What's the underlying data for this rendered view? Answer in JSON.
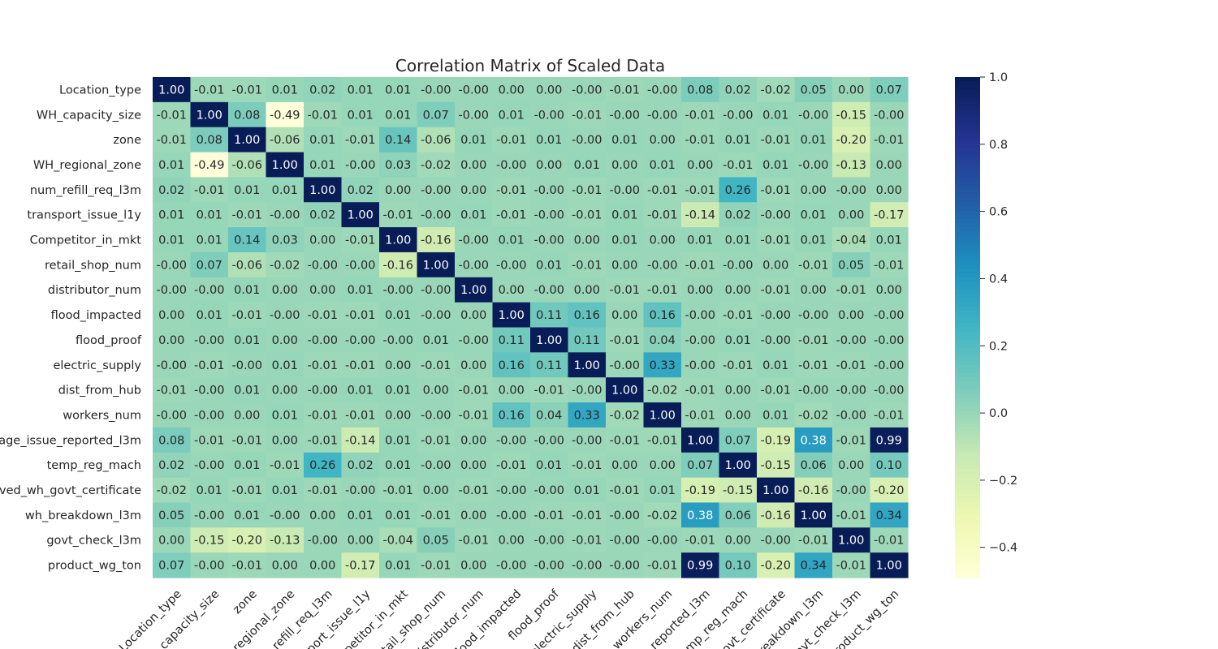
{
  "chart_data": {
    "type": "heatmap",
    "title": "Correlation Matrix of Scaled Data",
    "xlabel": "",
    "ylabel": "",
    "row_labels": [
      "Location_type",
      "WH_capacity_size",
      "zone",
      "WH_regional_zone",
      "num_refill_req_l3m",
      "transport_issue_l1y",
      "Competitor_in_mkt",
      "retail_shop_num",
      "distributor_num",
      "flood_impacted",
      "flood_proof",
      "electric_supply",
      "dist_from_hub",
      "workers_num",
      "rage_issue_reported_l3m",
      "temp_reg_mach",
      "roved_wh_govt_certificate",
      "wh_breakdown_l3m",
      "govt_check_l3m",
      "product_wg_ton"
    ],
    "col_labels": [
      "Location_type",
      "_capacity_size",
      "zone",
      "_regional_zone",
      "refill_req_l3m",
      "port_issue_l1y",
      "petitor_in_mkt",
      "tail_shop_num",
      "distributor_num",
      "flood_impacted",
      "flood_proof",
      "electric_supply",
      "dist_from_hub",
      "workers_num",
      "_reported_l3m",
      "temp_reg_mach",
      "govt_certificate",
      "breakdown_l3m",
      "ovt_check_l3m",
      "roduct_wg_ton"
    ],
    "values": [
      [
        1.0,
        -0.01,
        -0.01,
        0.01,
        0.02,
        0.01,
        0.01,
        -0.0,
        -0.0,
        0.0,
        0.0,
        -0.0,
        -0.01,
        -0.0,
        0.08,
        0.02,
        -0.02,
        0.05,
        0.0,
        0.07
      ],
      [
        -0.01,
        1.0,
        0.08,
        -0.49,
        -0.01,
        0.01,
        0.01,
        0.07,
        -0.0,
        0.01,
        -0.0,
        -0.01,
        -0.0,
        -0.0,
        -0.01,
        -0.0,
        0.01,
        -0.0,
        -0.15,
        -0.0
      ],
      [
        -0.01,
        0.08,
        1.0,
        -0.06,
        0.01,
        -0.01,
        0.14,
        -0.06,
        0.01,
        -0.01,
        0.01,
        -0.0,
        0.01,
        0.0,
        -0.01,
        0.01,
        -0.01,
        0.01,
        -0.2,
        -0.01
      ],
      [
        0.01,
        -0.49,
        -0.06,
        1.0,
        0.01,
        -0.0,
        0.03,
        -0.02,
        0.0,
        -0.0,
        0.0,
        0.01,
        0.0,
        0.01,
        0.0,
        -0.01,
        0.01,
        -0.0,
        -0.13,
        0.0
      ],
      [
        0.02,
        -0.01,
        0.01,
        0.01,
        1.0,
        0.02,
        0.0,
        -0.0,
        0.0,
        -0.01,
        -0.0,
        -0.01,
        -0.0,
        -0.01,
        -0.01,
        0.26,
        -0.01,
        0.0,
        -0.0,
        0.0
      ],
      [
        0.01,
        0.01,
        -0.01,
        -0.0,
        0.02,
        1.0,
        -0.01,
        -0.0,
        0.01,
        -0.01,
        -0.0,
        -0.01,
        0.01,
        -0.01,
        -0.14,
        0.02,
        -0.0,
        0.01,
        0.0,
        -0.17
      ],
      [
        0.01,
        0.01,
        0.14,
        0.03,
        0.0,
        -0.01,
        1.0,
        -0.16,
        -0.0,
        0.01,
        -0.0,
        0.0,
        0.01,
        0.0,
        0.01,
        0.01,
        -0.01,
        0.01,
        -0.04,
        0.01
      ],
      [
        -0.0,
        0.07,
        -0.06,
        -0.02,
        -0.0,
        -0.0,
        -0.16,
        1.0,
        -0.0,
        -0.0,
        0.01,
        -0.01,
        0.0,
        -0.0,
        -0.01,
        -0.0,
        0.0,
        -0.01,
        0.05,
        -0.01
      ],
      [
        -0.0,
        -0.0,
        0.01,
        0.0,
        0.0,
        0.01,
        -0.0,
        -0.0,
        1.0,
        0.0,
        -0.0,
        0.0,
        -0.01,
        -0.01,
        0.0,
        0.0,
        -0.01,
        0.0,
        -0.01,
        0.0
      ],
      [
        0.0,
        0.01,
        -0.01,
        -0.0,
        -0.01,
        -0.01,
        0.01,
        -0.0,
        0.0,
        1.0,
        0.11,
        0.16,
        0.0,
        0.16,
        -0.0,
        -0.01,
        -0.0,
        -0.0,
        0.0,
        -0.0
      ],
      [
        0.0,
        -0.0,
        0.01,
        0.0,
        -0.0,
        -0.0,
        -0.0,
        0.01,
        -0.0,
        0.11,
        1.0,
        0.11,
        -0.01,
        0.04,
        -0.0,
        0.01,
        -0.0,
        -0.01,
        -0.0,
        -0.0
      ],
      [
        -0.0,
        -0.01,
        -0.0,
        0.01,
        -0.01,
        -0.01,
        0.0,
        -0.01,
        0.0,
        0.16,
        0.11,
        1.0,
        -0.0,
        0.33,
        -0.0,
        -0.01,
        0.01,
        -0.01,
        -0.01,
        -0.0
      ],
      [
        -0.01,
        -0.0,
        0.01,
        0.0,
        -0.0,
        0.01,
        0.01,
        0.0,
        -0.01,
        0.0,
        -0.01,
        -0.0,
        1.0,
        -0.02,
        -0.01,
        0.0,
        -0.01,
        -0.0,
        -0.0,
        -0.0
      ],
      [
        -0.0,
        -0.0,
        0.0,
        0.01,
        -0.01,
        -0.01,
        0.0,
        -0.0,
        -0.01,
        0.16,
        0.04,
        0.33,
        -0.02,
        1.0,
        -0.01,
        0.0,
        0.01,
        -0.02,
        -0.0,
        -0.01
      ],
      [
        0.08,
        -0.01,
        -0.01,
        0.0,
        -0.01,
        -0.14,
        0.01,
        -0.01,
        0.0,
        -0.0,
        -0.0,
        -0.0,
        -0.01,
        -0.01,
        1.0,
        0.07,
        -0.19,
        0.38,
        -0.01,
        0.99
      ],
      [
        0.02,
        -0.0,
        0.01,
        -0.01,
        0.26,
        0.02,
        0.01,
        -0.0,
        0.0,
        -0.01,
        0.01,
        -0.01,
        0.0,
        0.0,
        0.07,
        1.0,
        -0.15,
        0.06,
        0.0,
        0.1
      ],
      [
        -0.02,
        0.01,
        -0.01,
        0.01,
        -0.01,
        -0.0,
        -0.01,
        0.0,
        -0.01,
        -0.0,
        -0.0,
        0.01,
        -0.01,
        0.01,
        -0.19,
        -0.15,
        1.0,
        -0.16,
        -0.0,
        -0.2
      ],
      [
        0.05,
        -0.0,
        0.01,
        -0.0,
        0.0,
        0.01,
        0.01,
        -0.01,
        0.0,
        -0.0,
        -0.01,
        -0.01,
        -0.0,
        -0.02,
        0.38,
        0.06,
        -0.16,
        1.0,
        -0.01,
        0.34
      ],
      [
        0.0,
        -0.15,
        -0.2,
        -0.13,
        -0.0,
        0.0,
        -0.04,
        0.05,
        -0.01,
        0.0,
        -0.0,
        -0.01,
        -0.0,
        -0.0,
        -0.01,
        0.0,
        -0.0,
        -0.01,
        1.0,
        -0.01
      ],
      [
        0.07,
        -0.0,
        -0.01,
        0.0,
        0.0,
        -0.17,
        0.01,
        -0.01,
        0.0,
        -0.0,
        -0.0,
        -0.0,
        -0.0,
        -0.01,
        0.99,
        0.1,
        -0.2,
        0.34,
        -0.01,
        1.0
      ]
    ],
    "colormap": "YlGnBu",
    "value_range": [
      -0.49,
      1.0
    ],
    "annotation_format": "0.00",
    "colorbar": {
      "ticks": [
        1.0,
        0.8,
        0.6,
        0.4,
        0.2,
        0.0,
        -0.2,
        -0.4
      ],
      "tick_labels": [
        "1.0",
        "0.8",
        "0.6",
        "0.4",
        "0.2",
        "0.0",
        "−0.2",
        "−0.4"
      ]
    },
    "grid": false,
    "legend": "colorbar-right"
  }
}
